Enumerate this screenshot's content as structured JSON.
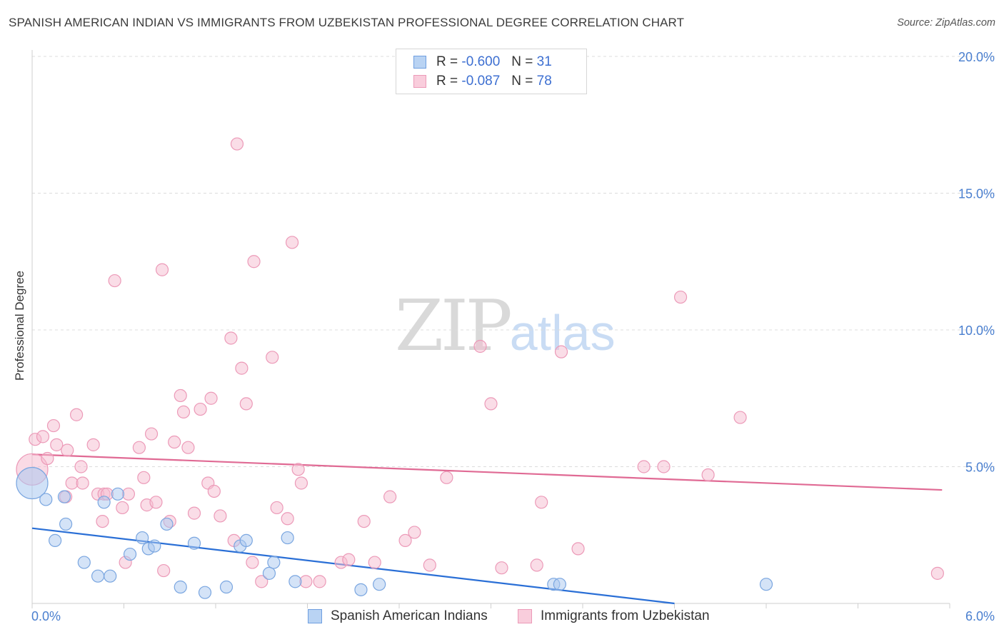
{
  "title": "SPANISH AMERICAN INDIAN VS IMMIGRANTS FROM UZBEKISTAN PROFESSIONAL DEGREE CORRELATION CHART",
  "source": "Source: ZipAtlas.com",
  "watermark": {
    "zip": "ZIP",
    "atlas": "atlas"
  },
  "colors": {
    "blue_fill": "#a9c8f0",
    "blue_stroke": "#7aa6e0",
    "blue_line": "#2a6fd6",
    "pink_fill": "#f6bcd0",
    "pink_stroke": "#ec9ab8",
    "pink_line": "#e06a94",
    "tick_text": "#4a7fcf"
  },
  "legend": {
    "rows": [
      {
        "r_label": "R = ",
        "r_value": "-0.600",
        "n_label": "N = ",
        "n_value": "31"
      },
      {
        "r_label": "R = ",
        "r_value": "-0.087",
        "n_label": "N = ",
        "n_value": "78"
      }
    ]
  },
  "bottom_legend": [
    "Spanish American Indians",
    "Immigrants from Uzbekistan"
  ],
  "chart_data": {
    "type": "scatter",
    "title": "SPANISH AMERICAN INDIAN VS IMMIGRANTS FROM UZBEKISTAN PROFESSIONAL DEGREE CORRELATION CHART",
    "xlabel": "",
    "ylabel": "Professional Degree",
    "xlim": [
      0,
      6.0
    ],
    "ylim": [
      0,
      20.5
    ],
    "y_ticks": [
      5,
      10,
      15,
      20
    ],
    "y_tick_labels": [
      "5.0%",
      "10.0%",
      "15.0%",
      "20.0%"
    ],
    "x_tick_labels": [
      "0.0%",
      "6.0%"
    ],
    "series": [
      {
        "name": "Spanish American Indians",
        "r": -0.6,
        "n": 31,
        "trend": {
          "x": [
            0.0,
            4.2
          ],
          "y": [
            2.75,
            0.0
          ]
        },
        "points": [
          [
            0.0,
            4.4,
            "big"
          ],
          [
            0.09,
            3.8
          ],
          [
            0.15,
            2.3
          ],
          [
            0.21,
            3.9
          ],
          [
            0.22,
            2.9
          ],
          [
            0.34,
            1.5
          ],
          [
            0.43,
            1.0
          ],
          [
            0.47,
            3.7
          ],
          [
            0.51,
            1.0
          ],
          [
            0.56,
            4.0
          ],
          [
            0.64,
            1.8
          ],
          [
            0.72,
            2.4
          ],
          [
            0.76,
            2.0
          ],
          [
            0.8,
            2.1
          ],
          [
            0.88,
            2.9
          ],
          [
            0.97,
            0.6
          ],
          [
            1.06,
            2.2
          ],
          [
            1.13,
            0.4
          ],
          [
            1.27,
            0.6
          ],
          [
            1.36,
            2.1
          ],
          [
            1.4,
            2.3
          ],
          [
            1.55,
            1.1
          ],
          [
            1.58,
            1.5
          ],
          [
            1.67,
            2.4
          ],
          [
            1.72,
            0.8
          ],
          [
            2.15,
            0.5
          ],
          [
            2.27,
            0.7
          ],
          [
            3.41,
            0.7
          ],
          [
            3.45,
            0.7
          ],
          [
            4.8,
            0.7
          ]
        ]
      },
      {
        "name": "Immigrants from Uzbekistan",
        "r": -0.087,
        "n": 78,
        "trend": {
          "x": [
            0.0,
            5.95
          ],
          "y": [
            5.45,
            4.15
          ]
        },
        "points": [
          [
            0.0,
            4.9,
            "big"
          ],
          [
            0.02,
            6.0
          ],
          [
            0.07,
            6.1
          ],
          [
            0.1,
            5.3
          ],
          [
            0.14,
            6.5
          ],
          [
            0.16,
            5.8
          ],
          [
            0.22,
            3.9
          ],
          [
            0.23,
            5.6
          ],
          [
            0.26,
            4.4
          ],
          [
            0.29,
            6.9
          ],
          [
            0.32,
            5.0
          ],
          [
            0.33,
            4.4
          ],
          [
            0.4,
            5.8
          ],
          [
            0.43,
            4.0
          ],
          [
            0.46,
            3.0
          ],
          [
            0.47,
            4.0
          ],
          [
            0.49,
            4.0
          ],
          [
            0.54,
            11.8
          ],
          [
            0.59,
            3.5
          ],
          [
            0.61,
            1.5
          ],
          [
            0.63,
            4.0
          ],
          [
            0.7,
            5.7
          ],
          [
            0.73,
            4.6
          ],
          [
            0.75,
            3.6
          ],
          [
            0.78,
            6.2
          ],
          [
            0.81,
            3.7
          ],
          [
            0.85,
            12.2
          ],
          [
            0.86,
            1.2
          ],
          [
            0.9,
            3.0
          ],
          [
            0.93,
            5.9
          ],
          [
            0.97,
            7.6
          ],
          [
            0.99,
            7.0
          ],
          [
            1.02,
            5.7
          ],
          [
            1.06,
            3.3
          ],
          [
            1.1,
            7.1
          ],
          [
            1.15,
            4.4
          ],
          [
            1.17,
            7.5
          ],
          [
            1.19,
            4.1
          ],
          [
            1.23,
            3.2
          ],
          [
            1.3,
            9.7
          ],
          [
            1.32,
            2.3
          ],
          [
            1.34,
            16.8
          ],
          [
            1.37,
            8.6
          ],
          [
            1.4,
            7.3
          ],
          [
            1.44,
            1.5
          ],
          [
            1.45,
            12.5
          ],
          [
            1.5,
            0.8
          ],
          [
            1.57,
            9.0
          ],
          [
            1.6,
            3.5
          ],
          [
            1.67,
            3.1
          ],
          [
            1.7,
            13.2
          ],
          [
            1.74,
            4.9
          ],
          [
            1.76,
            4.4
          ],
          [
            1.79,
            0.8
          ],
          [
            1.88,
            0.8
          ],
          [
            2.02,
            1.5
          ],
          [
            2.07,
            1.6
          ],
          [
            2.17,
            3.0
          ],
          [
            2.24,
            1.5
          ],
          [
            2.34,
            3.9
          ],
          [
            2.44,
            2.3
          ],
          [
            2.5,
            2.6
          ],
          [
            2.6,
            1.4
          ],
          [
            2.71,
            4.6
          ],
          [
            2.93,
            9.4
          ],
          [
            3.0,
            7.3
          ],
          [
            3.07,
            1.3
          ],
          [
            3.3,
            1.4
          ],
          [
            3.33,
            3.7
          ],
          [
            3.46,
            9.2
          ],
          [
            3.57,
            2.0
          ],
          [
            4.0,
            5.0
          ],
          [
            4.13,
            5.0
          ],
          [
            4.24,
            11.2
          ],
          [
            4.42,
            4.7
          ],
          [
            4.63,
            6.8
          ],
          [
            5.92,
            1.1
          ]
        ]
      }
    ]
  }
}
